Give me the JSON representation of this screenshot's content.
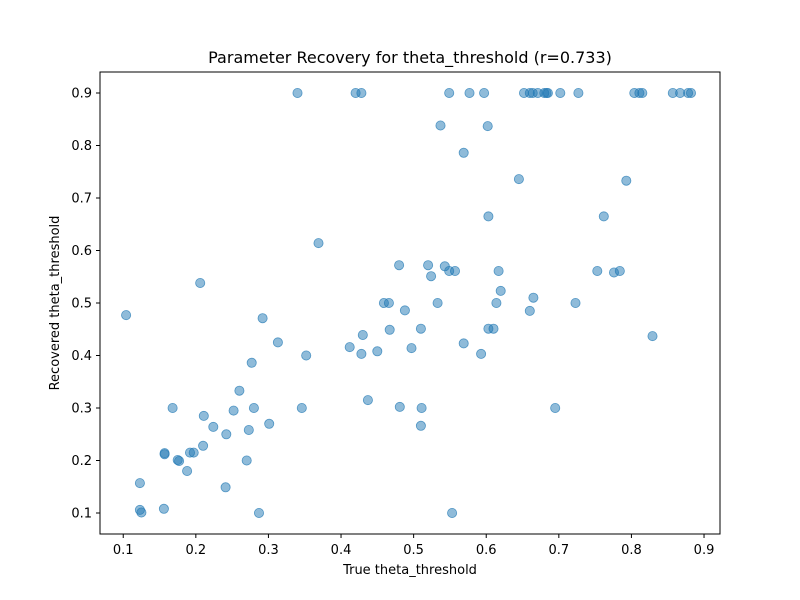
{
  "chart_data": {
    "type": "scatter",
    "title": "Parameter Recovery for theta_threshold (r=0.733)",
    "xlabel": "True theta_threshold",
    "ylabel": "Recovered theta_threshold",
    "xlim": [
      0.068,
      0.922
    ],
    "ylim": [
      0.06,
      0.94
    ],
    "xticks": [
      "0.1",
      "0.2",
      "0.3",
      "0.4",
      "0.5",
      "0.6",
      "0.7",
      "0.8",
      "0.9"
    ],
    "yticks": [
      "0.1",
      "0.2",
      "0.3",
      "0.4",
      "0.5",
      "0.6",
      "0.7",
      "0.8",
      "0.9"
    ],
    "grid": false,
    "marker_color": "#1f77b4",
    "marker_alpha": 0.5,
    "points": [
      [
        0.34,
        0.9
      ],
      [
        0.42,
        0.9
      ],
      [
        0.428,
        0.9
      ],
      [
        0.549,
        0.9
      ],
      [
        0.577,
        0.9
      ],
      [
        0.597,
        0.9
      ],
      [
        0.652,
        0.9
      ],
      [
        0.66,
        0.9
      ],
      [
        0.664,
        0.9
      ],
      [
        0.671,
        0.9
      ],
      [
        0.68,
        0.9
      ],
      [
        0.683,
        0.9
      ],
      [
        0.685,
        0.9
      ],
      [
        0.702,
        0.9
      ],
      [
        0.727,
        0.9
      ],
      [
        0.804,
        0.9
      ],
      [
        0.811,
        0.9
      ],
      [
        0.815,
        0.9
      ],
      [
        0.857,
        0.9
      ],
      [
        0.867,
        0.9
      ],
      [
        0.878,
        0.9
      ],
      [
        0.882,
        0.9
      ],
      [
        0.537,
        0.838
      ],
      [
        0.602,
        0.837
      ],
      [
        0.569,
        0.786
      ],
      [
        0.645,
        0.736
      ],
      [
        0.793,
        0.733
      ],
      [
        0.603,
        0.665
      ],
      [
        0.762,
        0.665
      ],
      [
        0.369,
        0.614
      ],
      [
        0.48,
        0.572
      ],
      [
        0.52,
        0.572
      ],
      [
        0.543,
        0.57
      ],
      [
        0.549,
        0.561
      ],
      [
        0.557,
        0.561
      ],
      [
        0.617,
        0.561
      ],
      [
        0.753,
        0.561
      ],
      [
        0.776,
        0.558
      ],
      [
        0.784,
        0.561
      ],
      [
        0.524,
        0.551
      ],
      [
        0.206,
        0.538
      ],
      [
        0.62,
        0.523
      ],
      [
        0.665,
        0.51
      ],
      [
        0.459,
        0.5
      ],
      [
        0.466,
        0.5
      ],
      [
        0.533,
        0.5
      ],
      [
        0.614,
        0.5
      ],
      [
        0.723,
        0.5
      ],
      [
        0.488,
        0.486
      ],
      [
        0.66,
        0.485
      ],
      [
        0.104,
        0.477
      ],
      [
        0.292,
        0.471
      ],
      [
        0.51,
        0.451
      ],
      [
        0.603,
        0.451
      ],
      [
        0.61,
        0.451
      ],
      [
        0.467,
        0.449
      ],
      [
        0.43,
        0.439
      ],
      [
        0.829,
        0.437
      ],
      [
        0.313,
        0.425
      ],
      [
        0.569,
        0.423
      ],
      [
        0.412,
        0.416
      ],
      [
        0.497,
        0.414
      ],
      [
        0.45,
        0.408
      ],
      [
        0.428,
        0.403
      ],
      [
        0.593,
        0.403
      ],
      [
        0.352,
        0.4
      ],
      [
        0.277,
        0.386
      ],
      [
        0.26,
        0.333
      ],
      [
        0.437,
        0.315
      ],
      [
        0.346,
        0.3
      ],
      [
        0.481,
        0.302
      ],
      [
        0.511,
        0.3
      ],
      [
        0.695,
        0.3
      ],
      [
        0.168,
        0.3
      ],
      [
        0.28,
        0.3
      ],
      [
        0.252,
        0.295
      ],
      [
        0.211,
        0.285
      ],
      [
        0.301,
        0.27
      ],
      [
        0.51,
        0.266
      ],
      [
        0.224,
        0.264
      ],
      [
        0.273,
        0.258
      ],
      [
        0.242,
        0.25
      ],
      [
        0.21,
        0.228
      ],
      [
        0.157,
        0.214
      ],
      [
        0.157,
        0.212
      ],
      [
        0.192,
        0.215
      ],
      [
        0.197,
        0.215
      ],
      [
        0.175,
        0.201
      ],
      [
        0.177,
        0.199
      ],
      [
        0.27,
        0.2
      ],
      [
        0.188,
        0.18
      ],
      [
        0.123,
        0.157
      ],
      [
        0.241,
        0.149
      ],
      [
        0.156,
        0.108
      ],
      [
        0.123,
        0.106
      ],
      [
        0.125,
        0.101
      ],
      [
        0.287,
        0.1
      ],
      [
        0.553,
        0.1
      ]
    ]
  }
}
